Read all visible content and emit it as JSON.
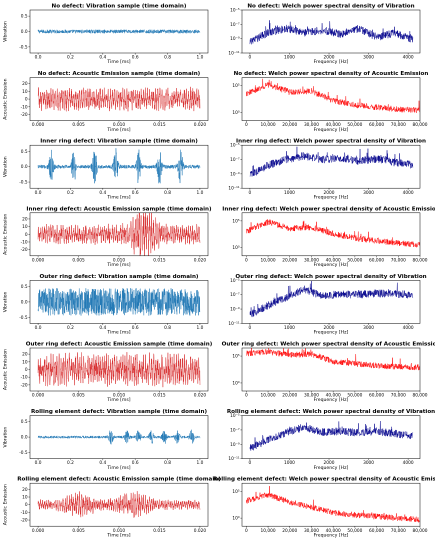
{
  "figure": {
    "background": "#ffffff",
    "time_color_vibration": "#1f77b4",
    "time_color_ae": "#d62728",
    "psd_color_vibration": "#00008b",
    "psd_color_ae": "#ff0000"
  },
  "chart_data": [
    {
      "type": "line",
      "row": 0,
      "col": 0,
      "signal": "vibration-time",
      "title": "No defect: Vibration sample (time domain)",
      "xlabel": "Time [ms]",
      "ylabel": "Vibration",
      "xlim": [
        -0.05,
        1.05
      ],
      "ylim": [
        -0.7,
        0.7
      ],
      "xticks": [
        0.0,
        0.2,
        0.4,
        0.6,
        0.8,
        1.0
      ],
      "xtick_labels": [
        "0.0",
        "0.2",
        "0.4",
        "0.6",
        "0.8",
        "1.0"
      ],
      "yticks": [
        -0.5,
        0.0,
        0.5
      ],
      "ytick_labels": [
        "-0.5",
        "0.0",
        "0.5"
      ],
      "amplitude": 0.06,
      "bursts": [],
      "color": "#1f77b4"
    },
    {
      "type": "line",
      "row": 0,
      "col": 1,
      "signal": "vibration-psd",
      "title": "No defect: Welch power spectral density of Vibration",
      "xlabel": "Frequency [Hz]",
      "ylabel": "",
      "xlim": [
        -200,
        4300
      ],
      "ylim": [
        -11,
        -5
      ],
      "log_y": true,
      "xticks": [
        0,
        1000,
        2000,
        3000,
        4000
      ],
      "xtick_labels": [
        "0",
        "1000",
        "2000",
        "3000",
        "4000"
      ],
      "yticks": [
        -11,
        -9,
        -7,
        -5
      ],
      "ytick_labels": [
        "10⁻¹¹",
        "10⁻⁹",
        "10⁻⁷",
        "10⁻⁵"
      ],
      "level": [
        -9.5,
        -8.2,
        -7.6,
        -8.2,
        -7.8,
        -8.4,
        -7.6,
        -8.8,
        -8.2,
        -9.2
      ],
      "color": "#00008b"
    },
    {
      "type": "line",
      "row": 1,
      "col": 0,
      "signal": "ae-time",
      "title": "No defect: Acoustic Emission sample (time domain)",
      "xlabel": "Time [ms]",
      "ylabel": "Acoustic Emission",
      "xlim": [
        -0.001,
        0.021
      ],
      "ylim": [
        -28,
        28
      ],
      "xticks": [
        0.0,
        0.005,
        0.01,
        0.015,
        0.02
      ],
      "xtick_labels": [
        "0.000",
        "0.005",
        "0.010",
        "0.015",
        "0.020"
      ],
      "yticks": [
        -20,
        -10,
        0,
        10,
        20
      ],
      "ytick_labels": [
        "-20",
        "-10",
        "0",
        "10",
        "20"
      ],
      "amplitude": 14,
      "bursts": [],
      "color": "#d62728"
    },
    {
      "type": "line",
      "row": 1,
      "col": 1,
      "signal": "ae-psd",
      "title": "No defect: Welch power spectral density of Acoustic Emission",
      "xlabel": "Frequency [Hz]",
      "ylabel": "",
      "xlim": [
        -2000,
        80000
      ],
      "ylim": [
        -1.5,
        6.5
      ],
      "log_y": true,
      "xticks": [
        0,
        10000,
        20000,
        30000,
        40000,
        50000,
        60000,
        70000,
        80000
      ],
      "xtick_labels": [
        "0",
        "10,000",
        "20,000",
        "30,000",
        "40,000",
        "50,000",
        "60,000",
        "70,000",
        "80,000"
      ],
      "yticks": [
        0,
        5
      ],
      "ytick_labels": [
        "10⁰",
        "10⁵"
      ],
      "level": [
        3.5,
        5.2,
        3.8,
        4.0,
        2.2,
        1.4,
        1.0,
        0.6,
        0.4
      ],
      "color": "#ff0000"
    },
    {
      "type": "line",
      "row": 2,
      "col": 0,
      "signal": "vibration-time",
      "title": "Inner ring defect: Vibration sample (time domain)",
      "xlabel": "Time [ms]",
      "ylabel": "Vibration",
      "xlim": [
        -0.05,
        1.05
      ],
      "ylim": [
        -0.7,
        0.7
      ],
      "xticks": [
        0.0,
        0.2,
        0.4,
        0.6,
        0.8,
        1.0
      ],
      "xtick_labels": [
        "0.0",
        "0.2",
        "0.4",
        "0.6",
        "0.8",
        "1.0"
      ],
      "yticks": [
        -0.5,
        0.0,
        0.5
      ],
      "ytick_labels": [
        "-0.5",
        "0.0",
        "0.5"
      ],
      "amplitude": 0.06,
      "bursts": [
        0.08,
        0.22,
        0.35,
        0.48,
        0.62,
        0.75,
        0.88
      ],
      "burst_amp": 0.55,
      "color": "#1f77b4"
    },
    {
      "type": "line",
      "row": 2,
      "col": 1,
      "signal": "vibration-psd",
      "title": "Inner ring defect: Welch power spectral density of Vibration",
      "xlabel": "Frequency [Hz]",
      "ylabel": "",
      "xlim": [
        -200,
        4300
      ],
      "ylim": [
        -11,
        -5
      ],
      "log_y": true,
      "xticks": [
        0,
        1000,
        2000,
        3000,
        4000
      ],
      "xtick_labels": [
        "0",
        "1000",
        "2000",
        "3000",
        "4000"
      ],
      "yticks": [
        -11,
        -9,
        -7,
        -5
      ],
      "ytick_labels": [
        "10⁻¹¹",
        "10⁻⁹",
        "10⁻⁷",
        "10⁻⁵"
      ],
      "level": [
        -9.2,
        -7.8,
        -7.0,
        -6.5,
        -7.0,
        -6.8,
        -7.2,
        -6.9,
        -7.4,
        -7.8
      ],
      "color": "#00008b"
    },
    {
      "type": "line",
      "row": 3,
      "col": 0,
      "signal": "ae-time",
      "title": "Inner ring defect: Acoustic Emission sample (time domain)",
      "xlabel": "Time [ms]",
      "ylabel": "Acoustic Emission",
      "xlim": [
        -0.001,
        0.021
      ],
      "ylim": [
        -28,
        28
      ],
      "xticks": [
        0.0,
        0.005,
        0.01,
        0.015,
        0.02
      ],
      "xtick_labels": [
        "0.000",
        "0.005",
        "0.010",
        "0.015",
        "0.020"
      ],
      "yticks": [
        -20,
        -10,
        0,
        10,
        20
      ],
      "ytick_labels": [
        "-20",
        "-10",
        "0",
        "10",
        "20"
      ],
      "amplitude": 12,
      "bursts": [
        0.013
      ],
      "burst_amp": 22,
      "burst_width": 0.0015,
      "color": "#d62728"
    },
    {
      "type": "line",
      "row": 3,
      "col": 1,
      "signal": "ae-psd",
      "title": "Inner ring defect: Welch power spectral density of Acoustic Emission",
      "xlabel": "Frequency [Hz]",
      "ylabel": "",
      "xlim": [
        -2000,
        80000
      ],
      "ylim": [
        -1.5,
        6.5
      ],
      "log_y": true,
      "xticks": [
        0,
        10000,
        20000,
        30000,
        40000,
        50000,
        60000,
        70000,
        80000
      ],
      "xtick_labels": [
        "0",
        "10,000",
        "20,000",
        "30,000",
        "40,000",
        "50,000",
        "60,000",
        "70,000",
        "80,000"
      ],
      "yticks": [
        0,
        5
      ],
      "ytick_labels": [
        "10⁰",
        "10⁵"
      ],
      "level": [
        3.0,
        4.8,
        3.6,
        3.8,
        2.6,
        1.8,
        1.3,
        0.9,
        0.5
      ],
      "color": "#ff0000"
    },
    {
      "type": "line",
      "row": 4,
      "col": 0,
      "signal": "vibration-time",
      "title": "Outer ring defect: Vibration sample (time domain)",
      "xlabel": "Time [ms]",
      "ylabel": "Vibration",
      "xlim": [
        -0.05,
        1.05
      ],
      "ylim": [
        -0.7,
        0.7
      ],
      "xticks": [
        0.0,
        0.2,
        0.4,
        0.6,
        0.8,
        1.0
      ],
      "xtick_labels": [
        "0.0",
        "0.2",
        "0.4",
        "0.6",
        "0.8",
        "1.0"
      ],
      "yticks": [
        -0.5,
        0.0,
        0.5
      ],
      "ytick_labels": [
        "-0.5",
        "0.0",
        "0.5"
      ],
      "amplitude": 0.45,
      "bursts": [],
      "color": "#1f77b4"
    },
    {
      "type": "line",
      "row": 4,
      "col": 1,
      "signal": "vibration-psd",
      "title": "Outer ring defect: Welch power spectral density of Vibration",
      "xlabel": "Frequency [Hz]",
      "ylabel": "",
      "xlim": [
        -200,
        4300
      ],
      "ylim": [
        -11,
        -5
      ],
      "log_y": true,
      "xticks": [
        0,
        1000,
        2000,
        3000,
        4000
      ],
      "xtick_labels": [
        "0",
        "1000",
        "2000",
        "3000",
        "4000"
      ],
      "yticks": [
        -11,
        -9,
        -7,
        -5
      ],
      "ytick_labels": [
        "10⁻¹¹",
        "10⁻⁹",
        "10⁻⁷",
        "10⁻⁵"
      ],
      "level": [
        -9.8,
        -8.5,
        -7.4,
        -6.2,
        -7.2,
        -6.9,
        -7.0,
        -6.8,
        -6.9,
        -7.0
      ],
      "color": "#00008b"
    },
    {
      "type": "line",
      "row": 5,
      "col": 0,
      "signal": "ae-time",
      "title": "Outer ring defect: Acoustic Emission sample (time domain)",
      "xlabel": "Time [ms]",
      "ylabel": "Acoustic Emission",
      "xlim": [
        -0.001,
        0.021
      ],
      "ylim": [
        -28,
        28
      ],
      "xticks": [
        0.0,
        0.005,
        0.01,
        0.015,
        0.02
      ],
      "xtick_labels": [
        "0.000",
        "0.005",
        "0.010",
        "0.015",
        "0.020"
      ],
      "yticks": [
        -20,
        -10,
        0,
        10,
        20
      ],
      "ytick_labels": [
        "-20",
        "-10",
        "0",
        "10",
        "20"
      ],
      "amplitude": 20,
      "bursts": [],
      "color": "#d62728"
    },
    {
      "type": "line",
      "row": 5,
      "col": 1,
      "signal": "ae-psd",
      "title": "Outer ring defect: Welch power spectral density of Acoustic Emission",
      "xlabel": "Frequency [Hz]",
      "ylabel": "",
      "xlim": [
        -2000,
        80000
      ],
      "ylim": [
        -1.5,
        6.5
      ],
      "log_y": true,
      "xticks": [
        0,
        10000,
        20000,
        30000,
        40000,
        50000,
        60000,
        70000,
        80000
      ],
      "xtick_labels": [
        "0",
        "10,000",
        "20,000",
        "30,000",
        "40,000",
        "50,000",
        "60,000",
        "70,000",
        "80,000"
      ],
      "yticks": [
        0,
        5
      ],
      "ytick_labels": [
        "10⁰",
        "10⁵"
      ],
      "level": [
        5.5,
        5.8,
        5.2,
        5.4,
        4.0,
        3.6,
        3.2,
        3.0,
        2.9
      ],
      "color": "#ff0000"
    },
    {
      "type": "line",
      "row": 6,
      "col": 0,
      "signal": "vibration-time",
      "title": "Rolling element defect: Vibration sample (time domain)",
      "xlabel": "Time [ms]",
      "ylabel": "Vibration",
      "xlim": [
        -0.05,
        1.05
      ],
      "ylim": [
        -0.7,
        0.7
      ],
      "xticks": [
        0.0,
        0.2,
        0.4,
        0.6,
        0.8,
        1.0
      ],
      "xtick_labels": [
        "0.0",
        "0.2",
        "0.4",
        "0.6",
        "0.8",
        "1.0"
      ],
      "yticks": [
        -0.5,
        0.0,
        0.5
      ],
      "ytick_labels": [
        "-0.5",
        "0.0",
        "0.5"
      ],
      "amplitude": 0.04,
      "bursts": [
        0.45,
        0.55,
        0.62,
        0.7,
        0.78,
        0.86,
        0.95
      ],
      "burst_amp": 0.22,
      "color": "#1f77b4"
    },
    {
      "type": "line",
      "row": 6,
      "col": 1,
      "signal": "vibration-psd",
      "title": "Rolling element defect: Welch power spectral density of Vibration",
      "xlabel": "Frequency [Hz]",
      "ylabel": "",
      "xlim": [
        -200,
        4300
      ],
      "ylim": [
        -11,
        -5
      ],
      "log_y": true,
      "xticks": [
        0,
        1000,
        2000,
        3000,
        4000
      ],
      "xtick_labels": [
        "0",
        "1000",
        "2000",
        "3000",
        "4000"
      ],
      "yticks": [
        -11,
        -9,
        -7,
        -5
      ],
      "ytick_labels": [
        "10⁻¹¹",
        "10⁻⁹",
        "10⁻⁷",
        "10⁻⁵"
      ],
      "level": [
        -9.6,
        -8.4,
        -7.4,
        -6.6,
        -7.3,
        -7.2,
        -7.4,
        -7.2,
        -7.5,
        -7.8
      ],
      "color": "#00008b"
    },
    {
      "type": "line",
      "row": 7,
      "col": 0,
      "signal": "ae-time",
      "title": "Rolling element defect: Acoustic Emission sample (time domain)",
      "xlabel": "Time [ms]",
      "ylabel": "Acoustic Emission",
      "xlim": [
        -0.001,
        0.021
      ],
      "ylim": [
        -28,
        28
      ],
      "xticks": [
        0.0,
        0.005,
        0.01,
        0.015,
        0.02
      ],
      "xtick_labels": [
        "0.000",
        "0.005",
        "0.010",
        "0.015",
        "0.020"
      ],
      "yticks": [
        -20,
        -10,
        0,
        10,
        20
      ],
      "ytick_labels": [
        "-20",
        "-10",
        "0",
        "10",
        "20"
      ],
      "amplitude": 6,
      "bursts": [
        0.005,
        0.0118
      ],
      "burst_amp": 10,
      "burst_width": 0.002,
      "color": "#d62728"
    },
    {
      "type": "line",
      "row": 7,
      "col": 1,
      "signal": "ae-psd",
      "title": "Rolling element defect: Welch power spectral density of Acoustic Emission",
      "xlabel": "Frequency [Hz]",
      "ylabel": "",
      "xlim": [
        -2000,
        80000
      ],
      "ylim": [
        -1.5,
        6.5
      ],
      "log_y": true,
      "xticks": [
        0,
        10000,
        20000,
        30000,
        40000,
        50000,
        60000,
        70000,
        80000
      ],
      "xtick_labels": [
        "0",
        "10,000",
        "20,000",
        "30,000",
        "40,000",
        "50,000",
        "60,000",
        "70,000",
        "80,000"
      ],
      "yticks": [
        0,
        5
      ],
      "ytick_labels": [
        "10⁰",
        "10⁵"
      ],
      "level": [
        3.2,
        4.4,
        3.0,
        2.0,
        1.0,
        0.6,
        0.3,
        0.0,
        -0.3
      ],
      "color": "#ff0000"
    }
  ]
}
